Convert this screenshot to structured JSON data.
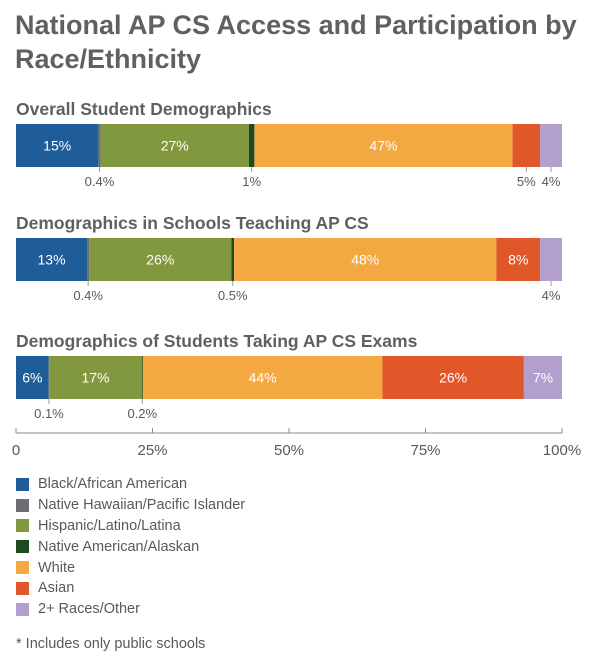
{
  "title": "National AP CS Access and Participation by Race/Ethnicity",
  "chart_data": {
    "type": "bar",
    "orientation": "horizontal-stacked-100",
    "categories": [
      "Black/African American",
      "Native Hawaiian/Pacific Islander",
      "Hispanic/Latino/Latina",
      "Native American/Alaskan",
      "White",
      "Asian",
      "2+ Races/Other"
    ],
    "colors": [
      "#1f5d99",
      "#6d6e71",
      "#82983f",
      "#1e4a21",
      "#f4a841",
      "#e0582a",
      "#b29fce"
    ],
    "bars": [
      {
        "title": "Overall Student Demographics",
        "values": [
          15,
          0.4,
          27,
          1,
          47,
          5,
          4
        ],
        "inside_labels": [
          "15%",
          "",
          "27%",
          "",
          "47%",
          "",
          ""
        ],
        "below_labels": [
          "",
          "0.4%",
          "",
          "1%",
          "",
          "5%",
          "4%"
        ]
      },
      {
        "title": "Demographics in Schools Teaching AP CS",
        "values": [
          13,
          0.4,
          26,
          0.5,
          48,
          8,
          4
        ],
        "inside_labels": [
          "13%",
          "",
          "26%",
          "",
          "48%",
          "8%",
          ""
        ],
        "below_labels": [
          "",
          "0.4%",
          "",
          "0.5%",
          "",
          "",
          "4%"
        ]
      },
      {
        "title": "Demographics of Students Taking AP CS Exams",
        "values": [
          6,
          0.1,
          17,
          0.2,
          44,
          26,
          7
        ],
        "inside_labels": [
          "6%",
          "",
          "17%",
          "",
          "44%",
          "26%",
          "7%"
        ],
        "below_labels": [
          "",
          "0.1%",
          "",
          "0.2%",
          "",
          "",
          ""
        ]
      }
    ],
    "xlim": [
      0,
      100
    ],
    "x_ticks": [
      0,
      25,
      50,
      75,
      100
    ],
    "x_tick_labels": [
      "0",
      "25%",
      "50%",
      "75%",
      "100%"
    ],
    "legend_placement": "bottom-left",
    "grid": false
  },
  "footnote": "* Includes only public schools"
}
